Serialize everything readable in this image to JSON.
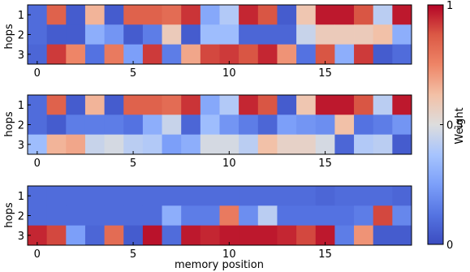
{
  "chart_data": {
    "type": "heatmap",
    "xlabel": "memory position",
    "ylabel": "hops",
    "x_ticks": [
      0,
      5,
      10,
      15
    ],
    "y_ticks": [
      "1",
      "2",
      "3"
    ],
    "colorbar": {
      "label": "Weight",
      "ticks": [
        {
          "value": 0,
          "label": "0"
        },
        {
          "value": 0.5,
          "label": "0.5"
        },
        {
          "value": 1,
          "label": "1"
        }
      ],
      "colormap": "coolwarm",
      "vmin": 0,
      "vmax": 1
    },
    "panels": [
      {
        "rows": [
          [
            0.1,
            0.85,
            0.05,
            0.65,
            0.05,
            0.85,
            0.85,
            0.82,
            0.93,
            0.28,
            0.4,
            0.95,
            0.88,
            0.05,
            0.6,
            0.97,
            0.97,
            0.88,
            0.42,
            0.97
          ],
          [
            0.1,
            0.05,
            0.05,
            0.3,
            0.22,
            0.05,
            0.15,
            0.58,
            0.05,
            0.35,
            0.35,
            0.08,
            0.08,
            0.08,
            0.45,
            0.58,
            0.58,
            0.58,
            0.62,
            0.3
          ],
          [
            0.08,
            0.92,
            0.75,
            0.12,
            0.78,
            0.25,
            0.92,
            0.15,
            0.68,
            0.9,
            0.92,
            0.88,
            0.95,
            0.72,
            0.12,
            0.88,
            0.3,
            0.92,
            0.05,
            0.1
          ]
        ]
      },
      {
        "rows": [
          [
            0.1,
            0.85,
            0.05,
            0.65,
            0.05,
            0.85,
            0.85,
            0.82,
            0.93,
            0.28,
            0.4,
            0.95,
            0.88,
            0.05,
            0.6,
            0.97,
            0.97,
            0.88,
            0.42,
            0.97
          ],
          [
            0.1,
            0.05,
            0.15,
            0.15,
            0.15,
            0.12,
            0.3,
            0.45,
            0.08,
            0.35,
            0.22,
            0.15,
            0.08,
            0.25,
            0.22,
            0.2,
            0.62,
            0.12,
            0.15,
            0.22
          ],
          [
            0.35,
            0.65,
            0.68,
            0.45,
            0.48,
            0.42,
            0.4,
            0.25,
            0.3,
            0.48,
            0.48,
            0.42,
            0.62,
            0.55,
            0.55,
            0.48,
            0.08,
            0.4,
            0.42,
            0.05
          ]
        ]
      },
      {
        "rows": [
          [
            0.1,
            0.1,
            0.1,
            0.1,
            0.1,
            0.1,
            0.1,
            0.1,
            0.1,
            0.1,
            0.1,
            0.1,
            0.1,
            0.1,
            0.1,
            0.08,
            0.1,
            0.1,
            0.1,
            0.08
          ],
          [
            0.1,
            0.1,
            0.1,
            0.1,
            0.1,
            0.1,
            0.1,
            0.3,
            0.15,
            0.15,
            0.78,
            0.2,
            0.42,
            0.12,
            0.12,
            0.12,
            0.12,
            0.15,
            0.9,
            0.18
          ],
          [
            0.95,
            0.9,
            0.25,
            0.08,
            0.82,
            0.05,
            0.98,
            0.1,
            0.97,
            0.95,
            0.97,
            0.97,
            0.97,
            0.95,
            0.9,
            0.97,
            0.15,
            0.72,
            0.05,
            0.05
          ]
        ]
      }
    ]
  }
}
